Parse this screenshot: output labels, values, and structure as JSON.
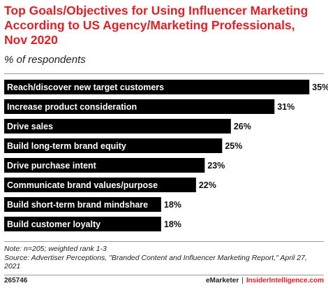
{
  "header": {
    "title": "Top Goals/Objectives for Using Influencer Marketing According to US Agency/Marketing Professionals, Nov 2020",
    "subtitle": "% of respondents"
  },
  "chart_data": {
    "type": "bar",
    "orientation": "horizontal",
    "title": "Top Goals/Objectives for Using Influencer Marketing According to US Agency/Marketing Professionals, Nov 2020",
    "subtitle": "% of respondents",
    "categories": [
      "Reach/discover new target customers",
      "Increase product consideration",
      "Drive sales",
      "Build long-term brand equity",
      "Drive purchase intent",
      "Communicate brand values/purpose",
      "Build short-term brand mindshare",
      "Build customer loyalty"
    ],
    "values": [
      35,
      31,
      26,
      25,
      23,
      22,
      18,
      18
    ],
    "value_labels": [
      "35%",
      "31%",
      "26%",
      "25%",
      "23%",
      "22%",
      "18%",
      "18%"
    ],
    "xlim": [
      0,
      36.5
    ],
    "bar_color": "#000000",
    "grid": false
  },
  "notes": {
    "note": "Note: n=205; weighted rank 1-3",
    "source": "Source: Advertiser Perceptions, \"Branded Content and Influencer Marketing Report,\" April 27, 2021"
  },
  "footer": {
    "chart_id": "265746",
    "brand": "eMarketer",
    "separator": "|",
    "site": "InsiderIntelligence.com"
  },
  "colors": {
    "accent": "#e21f26",
    "bar": "#000000"
  }
}
